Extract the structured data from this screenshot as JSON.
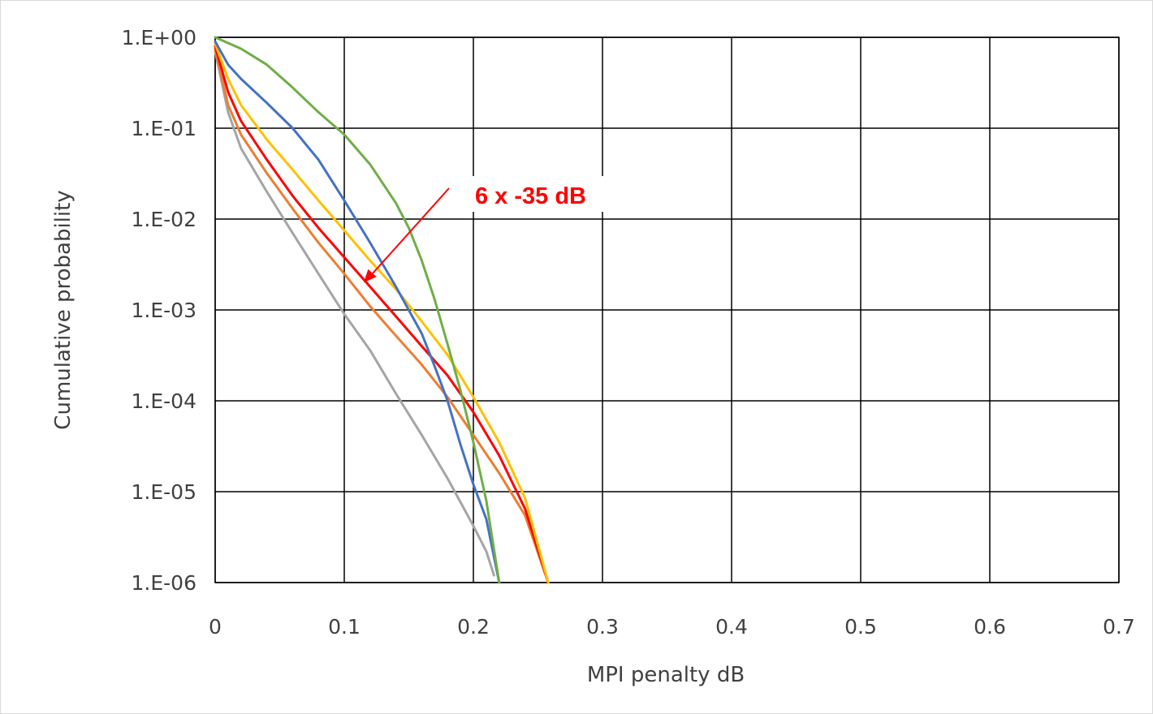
{
  "chart_data": {
    "type": "line",
    "title": "",
    "xlabel": "MPI penalty dB",
    "ylabel": "Cumulative probability",
    "xlim": [
      0,
      0.7
    ],
    "ylim": [
      1e-06,
      1
    ],
    "yscale": "log",
    "grid": true,
    "x_ticks": [
      "0",
      "0.1",
      "0.2",
      "0.3",
      "0.4",
      "0.5",
      "0.6",
      "0.7"
    ],
    "y_ticks": [
      "1.E+00",
      "1.E-01",
      "1.E-02",
      "1.E-03",
      "1.E-04",
      "1.E-05",
      "1.E-06"
    ],
    "annotation": {
      "text": "6 x -35 dB",
      "color": "#ff0000",
      "points_to": [
        0.115,
        0.002
      ]
    },
    "series": [
      {
        "color": "#a5a5a5",
        "x": [
          0,
          0.01,
          0.02,
          0.04,
          0.06,
          0.08,
          0.1,
          0.12,
          0.14,
          0.16,
          0.18,
          0.2,
          0.21,
          0.216
        ],
        "y": [
          0.7,
          0.15,
          0.06,
          0.02,
          0.007,
          0.0025,
          0.0009,
          0.00036,
          0.00012,
          4.2e-05,
          1.4e-05,
          4.2e-06,
          2.2e-06,
          1.2e-06
        ]
      },
      {
        "color": "#ed7d31",
        "x": [
          0,
          0.01,
          0.02,
          0.04,
          0.06,
          0.08,
          0.1,
          0.12,
          0.14,
          0.16,
          0.18,
          0.2,
          0.22,
          0.24,
          0.258
        ],
        "y": [
          0.75,
          0.18,
          0.085,
          0.032,
          0.013,
          0.0055,
          0.0025,
          0.0011,
          0.00052,
          0.00025,
          0.00011,
          4.2e-05,
          1.6e-05,
          5.5e-06,
          1e-06
        ]
      },
      {
        "color": "#ff0000",
        "x": [
          0,
          0.01,
          0.02,
          0.04,
          0.06,
          0.08,
          0.1,
          0.12,
          0.14,
          0.16,
          0.18,
          0.2,
          0.22,
          0.24,
          0.258
        ],
        "y": [
          0.8,
          0.25,
          0.12,
          0.045,
          0.018,
          0.008,
          0.0038,
          0.0018,
          0.00085,
          0.0004,
          0.00019,
          7.5e-05,
          2.5e-05,
          6.5e-06,
          1e-06
        ]
      },
      {
        "color": "#ffc000",
        "x": [
          0,
          0.01,
          0.02,
          0.04,
          0.06,
          0.08,
          0.1,
          0.12,
          0.14,
          0.16,
          0.18,
          0.2,
          0.22,
          0.24,
          0.258
        ],
        "y": [
          0.85,
          0.35,
          0.18,
          0.075,
          0.035,
          0.016,
          0.0075,
          0.0035,
          0.0017,
          0.00075,
          0.00032,
          0.00011,
          3.5e-05,
          8.5e-06,
          1e-06
        ]
      },
      {
        "color": "#4472c4",
        "x": [
          0,
          0.01,
          0.02,
          0.04,
          0.06,
          0.08,
          0.1,
          0.12,
          0.14,
          0.16,
          0.17,
          0.18,
          0.19,
          0.2,
          0.21,
          0.22
        ],
        "y": [
          0.9,
          0.5,
          0.35,
          0.19,
          0.1,
          0.045,
          0.016,
          0.0055,
          0.0018,
          0.00055,
          0.00024,
          0.0001,
          3.3e-05,
          1.2e-05,
          5e-06,
          1e-06
        ]
      },
      {
        "color": "#70ad47",
        "x": [
          0,
          0.02,
          0.04,
          0.06,
          0.08,
          0.1,
          0.12,
          0.14,
          0.15,
          0.16,
          0.17,
          0.18,
          0.19,
          0.2,
          0.21,
          0.22
        ],
        "y": [
          1.0,
          0.75,
          0.5,
          0.28,
          0.15,
          0.085,
          0.04,
          0.015,
          0.008,
          0.0035,
          0.0013,
          0.00042,
          0.00013,
          3.5e-05,
          8e-06,
          1e-06
        ]
      }
    ]
  }
}
